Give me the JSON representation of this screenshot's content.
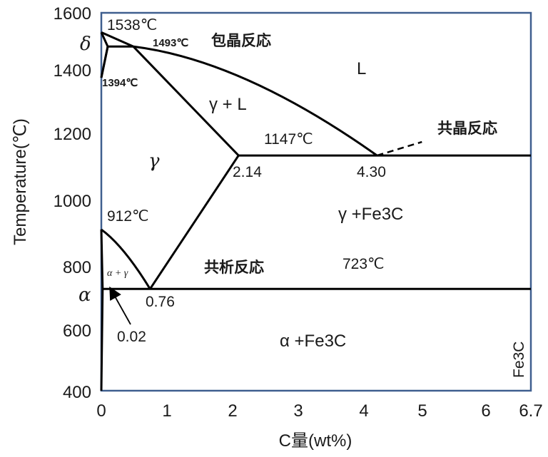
{
  "chart_data": {
    "type": "phase-diagram",
    "title": "",
    "xlabel": "C量(wt%)",
    "ylabel": "Temperature(℃)",
    "xlim": [
      0,
      6.7
    ],
    "ylim": [
      400,
      1600
    ],
    "xticks": [
      "0",
      "1",
      "2",
      "3",
      "4",
      "5",
      "6",
      "6.7"
    ],
    "yticks": [
      "400",
      "600",
      "800",
      "1000",
      "1200",
      "1400",
      "1600"
    ],
    "right_edge_label": "Fe3C",
    "phases": {
      "delta": "δ",
      "gamma": "γ",
      "alpha": "α",
      "liquid": "L",
      "gamma_liquid": "γ + L",
      "alpha_gamma": "α + γ",
      "gamma_fe3c": "γ +Fe3C",
      "alpha_fe3c": "α +Fe3C"
    },
    "reactions": {
      "peritectic": "包晶反応",
      "eutectic": "共晶反応",
      "eutectoid": "共析反応"
    },
    "temperatures": {
      "t1538": "1538℃",
      "t1493": "1493℃",
      "t1394": "1394℃",
      "t1147": "1147℃",
      "t912": "912℃",
      "t723": "723℃"
    },
    "compositions": {
      "c214": "2.14",
      "c430": "4.30",
      "c076": "0.76",
      "c002": "0.02"
    },
    "key_points": {
      "fe_melting": [
        0,
        1538
      ],
      "peritectic_left": [
        0.1,
        1493
      ],
      "peritectic_right": [
        0.5,
        1493
      ],
      "delta_gamma_bottom": [
        0,
        1394
      ],
      "gamma_max_solubility": [
        2.14,
        1147
      ],
      "eutectic": [
        4.3,
        1147
      ],
      "eutectic_line_end": [
        6.7,
        1147
      ],
      "fe_alpha_gamma": [
        0,
        912
      ],
      "alpha_max_solubility": [
        0.02,
        723
      ],
      "eutectoid": [
        0.76,
        723
      ],
      "eutectoid_line_end": [
        6.7,
        723
      ],
      "alpha_solvus_bottom": [
        0,
        400
      ],
      "liquidus_extension_end": [
        5.0,
        1190
      ]
    }
  }
}
